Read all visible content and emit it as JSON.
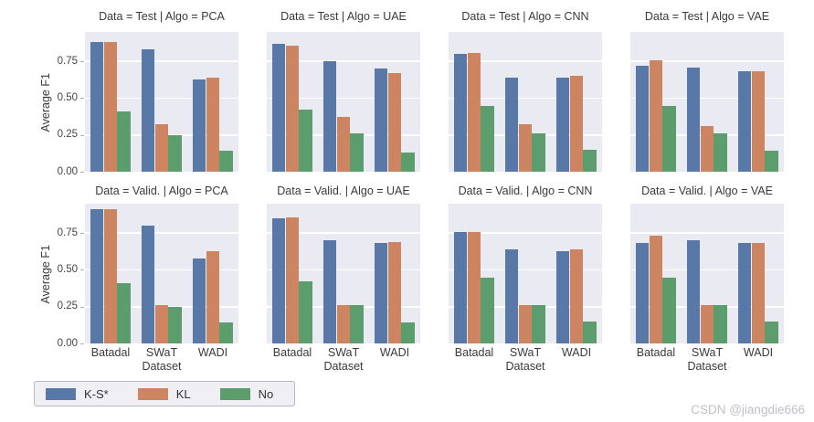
{
  "watermark": "CSDN @jiangdie666",
  "colors": {
    "series": [
      "#5878A8",
      "#CC8560",
      "#5C9D6E"
    ],
    "axes_bg": "#EAEAF2",
    "grid": "#FFFFFF",
    "legend_bg": "#F0F0F4",
    "legend_border": "#B9B9C2",
    "text": "#3A3A3A",
    "watermark_text": "#BFBFC7"
  },
  "chart_data": {
    "type": "bar",
    "facet_layout": {
      "rows": 2,
      "cols": 4,
      "row_variable": "Data",
      "col_variable": "Algo"
    },
    "categories": [
      "Batadal",
      "SWaT",
      "WADI"
    ],
    "xlabel": "Dataset",
    "ylabel": "Average F1",
    "ylim": [
      0,
      0.95
    ],
    "yticks": [
      0,
      0.25,
      0.5,
      0.75
    ],
    "ytick_labels": [
      "0.00",
      "0.25",
      "0.50",
      "0.75"
    ],
    "grid": true,
    "legend": {
      "entries": [
        "K-S*",
        "KL",
        "No"
      ],
      "position": "lower left"
    },
    "facets": [
      {
        "title": "Data = Test | Algo = PCA",
        "series": [
          {
            "name": "K-S*",
            "values": [
              0.88,
              0.83,
              0.63
            ]
          },
          {
            "name": "KL",
            "values": [
              0.88,
              0.32,
              0.64
            ]
          },
          {
            "name": "No",
            "values": [
              0.41,
              0.25,
              0.14
            ]
          }
        ]
      },
      {
        "title": "Data = Test | Algo = UAE",
        "series": [
          {
            "name": "K-S*",
            "values": [
              0.87,
              0.75,
              0.7
            ]
          },
          {
            "name": "KL",
            "values": [
              0.86,
              0.37,
              0.67
            ]
          },
          {
            "name": "No",
            "values": [
              0.42,
              0.26,
              0.13
            ]
          }
        ]
      },
      {
        "title": "Data = Test | Algo = CNN",
        "series": [
          {
            "name": "K-S*",
            "values": [
              0.8,
              0.64,
              0.64
            ]
          },
          {
            "name": "KL",
            "values": [
              0.81,
              0.32,
              0.65
            ]
          },
          {
            "name": "No",
            "values": [
              0.45,
              0.26,
              0.15
            ]
          }
        ]
      },
      {
        "title": "Data = Test | Algo = VAE",
        "series": [
          {
            "name": "K-S*",
            "values": [
              0.72,
              0.71,
              0.68
            ]
          },
          {
            "name": "KL",
            "values": [
              0.76,
              0.31,
              0.68
            ]
          },
          {
            "name": "No",
            "values": [
              0.45,
              0.26,
              0.14
            ]
          }
        ]
      },
      {
        "title": "Data = Valid. | Algo = PCA",
        "series": [
          {
            "name": "K-S*",
            "values": [
              0.91,
              0.8,
              0.58
            ]
          },
          {
            "name": "KL",
            "values": [
              0.91,
              0.26,
              0.63
            ]
          },
          {
            "name": "No",
            "values": [
              0.41,
              0.25,
              0.14
            ]
          }
        ]
      },
      {
        "title": "Data = Valid. | Algo = UAE",
        "series": [
          {
            "name": "K-S*",
            "values": [
              0.85,
              0.7,
              0.68
            ]
          },
          {
            "name": "KL",
            "values": [
              0.86,
              0.26,
              0.69
            ]
          },
          {
            "name": "No",
            "values": [
              0.42,
              0.26,
              0.14
            ]
          }
        ]
      },
      {
        "title": "Data = Valid. | Algo = CNN",
        "series": [
          {
            "name": "K-S*",
            "values": [
              0.76,
              0.64,
              0.63
            ]
          },
          {
            "name": "KL",
            "values": [
              0.76,
              0.26,
              0.64
            ]
          },
          {
            "name": "No",
            "values": [
              0.45,
              0.26,
              0.15
            ]
          }
        ]
      },
      {
        "title": "Data = Valid. | Algo = VAE",
        "series": [
          {
            "name": "K-S*",
            "values": [
              0.68,
              0.7,
              0.68
            ]
          },
          {
            "name": "KL",
            "values": [
              0.73,
              0.26,
              0.68
            ]
          },
          {
            "name": "No",
            "values": [
              0.45,
              0.26,
              0.15
            ]
          }
        ]
      }
    ]
  }
}
